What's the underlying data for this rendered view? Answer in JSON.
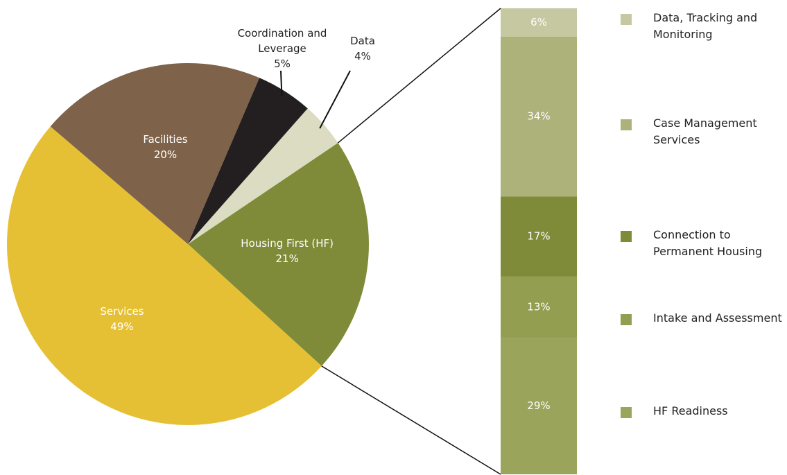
{
  "chart_data": [
    {
      "type": "pie",
      "categories": [
        "Housing First (HF)",
        "Services",
        "Facilities",
        "Coordination and Leverage",
        "Data"
      ],
      "values": [
        21,
        49,
        20,
        5,
        4
      ],
      "value_labels": [
        "21%",
        "49%",
        "20%",
        "5%",
        "4%"
      ],
      "colors": [
        "#7f8b38",
        "#e6c034",
        "#7e634a",
        "#231f20",
        "#dcdcc3"
      ]
    },
    {
      "type": "bar",
      "stacked": true,
      "series": [
        {
          "name": "Data, Tracking and Monitoring",
          "color": "#c5c8a0",
          "values": [
            6
          ],
          "value_labels": [
            "6%"
          ]
        },
        {
          "name": "Case Management Services",
          "color": "#adb27b",
          "values": [
            34
          ],
          "value_labels": [
            "34%"
          ]
        },
        {
          "name": "Connection to Permanent Housing",
          "color": "#7f8b38",
          "values": [
            17
          ],
          "value_labels": [
            "17%"
          ]
        },
        {
          "name": "Intake and Assessment",
          "color": "#939e50",
          "values": [
            13
          ],
          "value_labels": [
            "13%"
          ]
        },
        {
          "name": "HF Readiness",
          "color": "#9aa45b",
          "values": [
            29
          ],
          "value_labels": [
            "29%"
          ]
        }
      ]
    }
  ]
}
